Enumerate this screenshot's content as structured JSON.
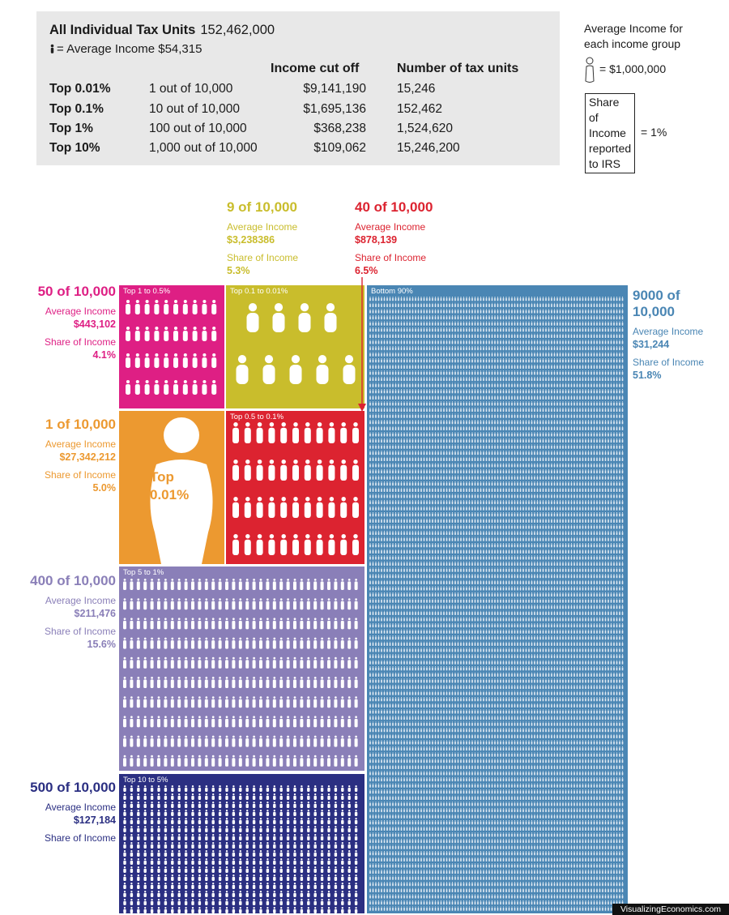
{
  "summary": {
    "title": "All Individual Tax Units",
    "total_units": "152,462,000",
    "average_income_label": "= Average Income $54,315",
    "col_cutoff": "Income cut off",
    "col_units": "Number of tax units",
    "rows": [
      {
        "group": "Top 0.01%",
        "ratio": "1 out of 10,000",
        "cutoff": "$9,141,190",
        "units": "15,246"
      },
      {
        "group": "Top 0.1%",
        "ratio": "10 out of 10,000",
        "cutoff": "$1,695,136",
        "units": "152,462"
      },
      {
        "group": "Top 1%",
        "ratio": "100 out of 10,000",
        "cutoff": "$368,238",
        "units": "1,524,620"
      },
      {
        "group": "Top 10%",
        "ratio": "1,000 out of 10,000",
        "cutoff": "$109,062",
        "units": "15,246,200"
      }
    ]
  },
  "legend": {
    "avg_title_1": "Average Income for",
    "avg_title_2": "each income group",
    "avg_value": "= $1,000,000",
    "share_1": "Share of",
    "share_2": "Income",
    "share_3": "reported",
    "share_4": "to IRS",
    "share_value": "= 1%"
  },
  "labels": {
    "avg_income": "Average Income",
    "share_income": "Share of Income"
  },
  "chart_data": {
    "type": "treemap",
    "groups": [
      {
        "id": "top_001",
        "name": "Top 0.01%",
        "box_label": "Top\n0.01%",
        "count": "1 of 10,000",
        "avg_income": "$27,342,212",
        "share": "5.0%",
        "share_value": 5.0,
        "color": "#ec9930"
      },
      {
        "id": "top_01_001",
        "name": "Top 0.1 to 0.01%",
        "count": "9 of 10,000",
        "avg_income": "$3,238386",
        "share": "5.3%",
        "share_value": 5.3,
        "color": "#c9bd2c"
      },
      {
        "id": "top_05_01",
        "name": "Top 0.5 to 0.1%",
        "count": "40 of 10,000",
        "avg_income": "$878,139",
        "share": "6.5%",
        "share_value": 6.5,
        "color": "#dc2330"
      },
      {
        "id": "top_1_05",
        "name": "Top 1 to 0.5%",
        "count": "50 of 10,000",
        "avg_income": "$443,102",
        "share": "4.1%",
        "share_value": 4.1,
        "color": "#de1f84"
      },
      {
        "id": "top_5_1",
        "name": "Top 5 to 1%",
        "count": "400 of 10,000",
        "avg_income": "$211,476",
        "share": "15.6%",
        "share_value": 15.6,
        "color": "#8a7fb8"
      },
      {
        "id": "top_10_5",
        "name": "Top 10 to 5%",
        "count": "500 of 10,000",
        "avg_income": "$127,184",
        "share": "",
        "share_value": null,
        "color": "#2b2f82"
      },
      {
        "id": "bottom_90",
        "name": "Bottom 90%",
        "count": "9000 of 10,000",
        "avg_income": "$31,244",
        "share": "51.8%",
        "share_value": 51.8,
        "color": "#4a86b4"
      }
    ]
  },
  "credit": "VisualizingEconomics.com"
}
